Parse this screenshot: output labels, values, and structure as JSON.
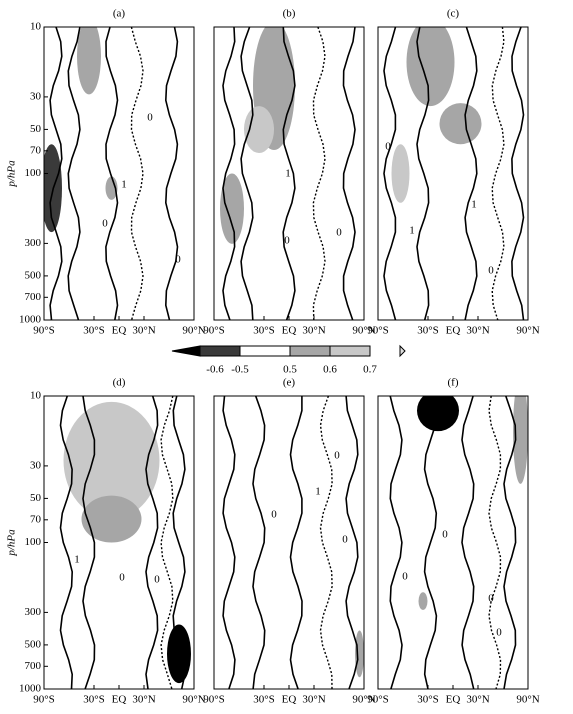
{
  "chart_data": [
    {
      "type": "contour",
      "title": "(a)",
      "ylabel": "p/hPa",
      "yscale": "log",
      "ylim": [
        1000,
        10
      ],
      "yticks": [
        10,
        30,
        50,
        70,
        100,
        300,
        500,
        700,
        1000
      ],
      "xlim": [
        -90,
        90
      ],
      "xticks": [
        {
          "value": -90,
          "label": "90°S"
        },
        {
          "value": -30,
          "label": "30°S"
        },
        {
          "value": 0,
          "label": "EQ"
        },
        {
          "value": 30,
          "label": "30°N"
        },
        {
          "value": 90,
          "label": "90°N"
        }
      ],
      "contour_labels": [
        0,
        1,
        0,
        0
      ]
    },
    {
      "type": "contour",
      "title": "(b)",
      "yscale": "log",
      "ylim": [
        1000,
        10
      ],
      "xlim": [
        -90,
        90
      ],
      "xticks": [
        {
          "value": -90,
          "label": "90°S"
        },
        {
          "value": -30,
          "label": "30°S"
        },
        {
          "value": 0,
          "label": "EQ"
        },
        {
          "value": 30,
          "label": "30°N"
        },
        {
          "value": 90,
          "label": "90°N"
        }
      ],
      "contour_labels": [
        1,
        0,
        0
      ]
    },
    {
      "type": "contour",
      "title": "(c)",
      "yscale": "log",
      "ylim": [
        1000,
        10
      ],
      "xlim": [
        -90,
        90
      ],
      "xticks": [
        {
          "value": -90,
          "label": "90°S"
        },
        {
          "value": -30,
          "label": "30°S"
        },
        {
          "value": 0,
          "label": "EQ"
        },
        {
          "value": 30,
          "label": "30°N"
        },
        {
          "value": 90,
          "label": "90°N"
        }
      ],
      "contour_labels": [
        0,
        1,
        1,
        0
      ]
    },
    {
      "type": "contour",
      "title": "(d)",
      "ylabel": "p/hPa",
      "yscale": "log",
      "ylim": [
        1000,
        10
      ],
      "yticks": [
        10,
        30,
        50,
        70,
        100,
        300,
        500,
        700,
        1000
      ],
      "xlim": [
        -90,
        90
      ],
      "xticks": [
        {
          "value": -90,
          "label": "90°S"
        },
        {
          "value": -30,
          "label": "30°S"
        },
        {
          "value": 0,
          "label": "EQ"
        },
        {
          "value": 30,
          "label": "30°N"
        },
        {
          "value": 90,
          "label": "90°N"
        }
      ],
      "contour_labels": [
        1,
        0,
        0
      ]
    },
    {
      "type": "contour",
      "title": "(e)",
      "yscale": "log",
      "ylim": [
        1000,
        10
      ],
      "xlim": [
        -90,
        90
      ],
      "xticks": [
        {
          "value": -90,
          "label": "90°S"
        },
        {
          "value": -30,
          "label": "30°S"
        },
        {
          "value": 0,
          "label": "EQ"
        },
        {
          "value": 30,
          "label": "30°N"
        },
        {
          "value": 90,
          "label": "90°N"
        }
      ],
      "contour_labels": [
        0,
        1,
        0,
        0
      ]
    },
    {
      "type": "contour",
      "title": "(f)",
      "yscale": "log",
      "ylim": [
        1000,
        10
      ],
      "xlim": [
        -90,
        90
      ],
      "xticks": [
        {
          "value": -90,
          "label": "90°S"
        },
        {
          "value": -30,
          "label": "30°S"
        },
        {
          "value": 0,
          "label": "EQ"
        },
        {
          "value": 30,
          "label": "30°N"
        },
        {
          "value": 90,
          "label": "90°N"
        }
      ],
      "contour_labels": [
        0,
        0,
        0,
        0
      ]
    }
  ],
  "colorbar": {
    "levels": [
      -0.6,
      -0.5,
      0.5,
      0.6,
      0.7
    ],
    "colors": [
      "#000000",
      "#3a3a3a",
      "#ffffff",
      "#a6a6a6",
      "#c8c8c8",
      "#dedede"
    ]
  }
}
